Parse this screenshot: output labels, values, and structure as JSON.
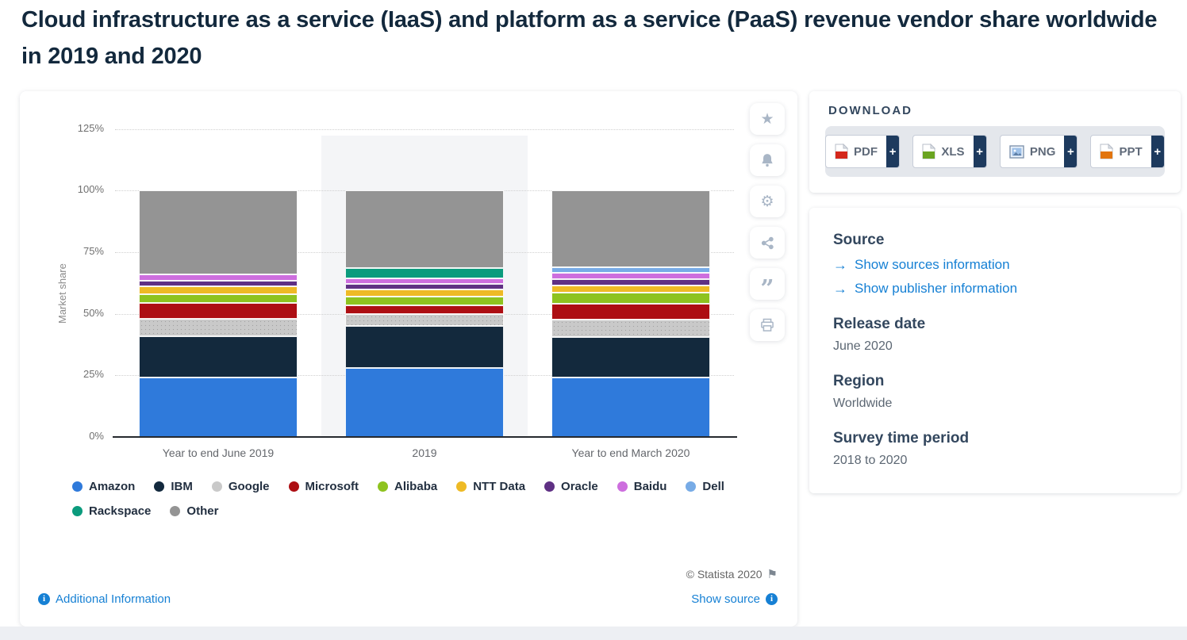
{
  "title": "Cloud infrastructure as a service (IaaS) and platform as a service (PaaS) revenue vendor share worldwide in 2019 and 2020",
  "chart_data": {
    "type": "bar",
    "stacked": true,
    "ylabel": "Market share",
    "ylim": [
      0,
      125
    ],
    "ytick_step": 25,
    "ytick_suffix": "%",
    "grid": "horizontal-dotted",
    "legend_position": "bottom",
    "highlight_category_index": 1,
    "categories": [
      "Year to end June 2019",
      "2019",
      "Year to end March 2020"
    ],
    "series": [
      {
        "name": "Amazon",
        "color": "#2f7adb",
        "values": [
          24,
          28,
          24
        ]
      },
      {
        "name": "IBM",
        "color": "#13293d",
        "values": [
          17,
          17,
          16.5
        ]
      },
      {
        "name": "Google",
        "color": "#c9c9c9",
        "pattern": "dots",
        "values": [
          7,
          5,
          7
        ]
      },
      {
        "name": "Microsoft",
        "color": "#ad0e13",
        "values": [
          6.5,
          3.5,
          6.5
        ]
      },
      {
        "name": "Alibaba",
        "color": "#8ec31f",
        "values": [
          3.5,
          3.5,
          4.5
        ]
      },
      {
        "name": "NTT Data",
        "color": "#eeba25",
        "values": [
          3,
          3,
          3
        ]
      },
      {
        "name": "Oracle",
        "color": "#5f3084",
        "values": [
          2.5,
          2,
          2.5
        ]
      },
      {
        "name": "Baidu",
        "color": "#cd6ede",
        "values": [
          2.5,
          2.5,
          2.5
        ]
      },
      {
        "name": "Dell",
        "color": "#77abe6",
        "values": [
          0,
          0,
          2.5
        ]
      },
      {
        "name": "Rackspace",
        "color": "#0b9b7d",
        "values": [
          0,
          4,
          0
        ]
      },
      {
        "name": "Other",
        "color": "#949494",
        "values": [
          34,
          31.5,
          31
        ]
      }
    ]
  },
  "toolbar": {
    "icons": [
      "star",
      "bell",
      "gear",
      "share",
      "quote",
      "print"
    ]
  },
  "download": {
    "heading": "DOWNLOAD",
    "plus_label": "+",
    "buttons": [
      {
        "label": "PDF"
      },
      {
        "label": "XLS"
      },
      {
        "label": "PNG"
      },
      {
        "label": "PPT"
      }
    ]
  },
  "source_panel": {
    "source_heading": "Source",
    "link_arrow": "→",
    "links": [
      {
        "label": "Show sources information"
      },
      {
        "label": "Show publisher information"
      }
    ],
    "release_date_heading": "Release date",
    "release_date": "June 2020",
    "region_heading": "Region",
    "region": "Worldwide",
    "survey_heading": "Survey time period",
    "survey_period": "2018 to 2020"
  },
  "chart_footer": {
    "copyright": "© Statista 2020",
    "additional_info_label": "Additional Information",
    "show_source_label": "Show source",
    "info_glyph": "i",
    "flag_glyph": "⚑"
  },
  "colors": {
    "accent_link": "#1680d4",
    "heading_navy": "#33475e",
    "title_navy": "#13293d",
    "plus_box_navy": "#1d3a5e",
    "download_tray_bg": "#e4e7ec",
    "highlight_band": "#f4f5f7",
    "rail_icon": "#a9b6c6"
  }
}
